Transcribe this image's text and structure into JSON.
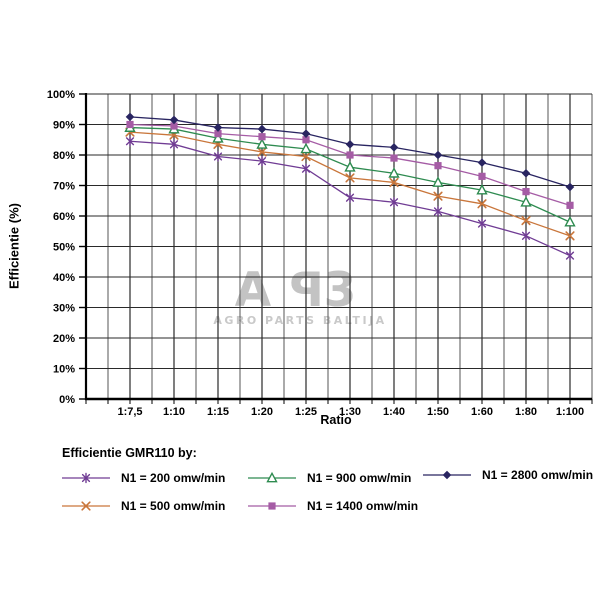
{
  "watermark": {
    "letter_a": "A",
    "letter_p": "P",
    "letter_b": "3",
    "subtitle": "AGRO PARTS BALTIJA",
    "big_color": "#c3c3c3",
    "sub_color": "#c9c9c9"
  },
  "legend": {
    "title": "Efficientie GMR110 by:",
    "position": "bottom"
  },
  "chart_data": {
    "type": "line",
    "title": "",
    "xlabel": "Ratio",
    "ylabel": "Efficientie (%)",
    "categories": [
      "1:7,5",
      "1:10",
      "1:15",
      "1:20",
      "1:25",
      "1:30",
      "1:40",
      "1:50",
      "1:60",
      "1:80",
      "1:100"
    ],
    "y_ticks": [
      "0%",
      "10%",
      "20%",
      "30%",
      "40%",
      "50%",
      "60%",
      "70%",
      "80%",
      "90%",
      "100%"
    ],
    "ylim": [
      0,
      100
    ],
    "grid": "both",
    "legend_position": "bottom",
    "series": [
      {
        "name": "N1 = 200 omw/min",
        "key": "n200",
        "marker": "star",
        "color": "#703c94",
        "values": [
          84.5,
          83.5,
          79.5,
          78,
          75.5,
          66,
          64.5,
          61.5,
          57.5,
          53.5,
          47
        ]
      },
      {
        "name": "N1 = 500 omw/min",
        "key": "n500",
        "marker": "x",
        "color": "#c9763b",
        "values": [
          87.5,
          86.5,
          83.5,
          81,
          79.5,
          72.5,
          71,
          66.5,
          64,
          58.5,
          53.5
        ]
      },
      {
        "name": "N1 = 900 omw/min",
        "key": "n900",
        "marker": "triangle-open",
        "color": "#2e8b50",
        "values": [
          89,
          88.5,
          85.5,
          83.5,
          82,
          76,
          74,
          71,
          68.5,
          64.5,
          58
        ]
      },
      {
        "name": "N1 = 1400 omw/min",
        "key": "n1400",
        "marker": "square",
        "color": "#a55ca5",
        "values": [
          90,
          89.5,
          87,
          86,
          85,
          80,
          79,
          76.5,
          73,
          68,
          63.5
        ]
      },
      {
        "name": "N1 = 2800 omw/min",
        "key": "n2800",
        "marker": "diamond",
        "color": "#292561",
        "values": [
          92.5,
          91.5,
          89,
          88.5,
          87,
          83.5,
          82.5,
          80,
          77.5,
          74,
          69.5
        ]
      }
    ]
  }
}
